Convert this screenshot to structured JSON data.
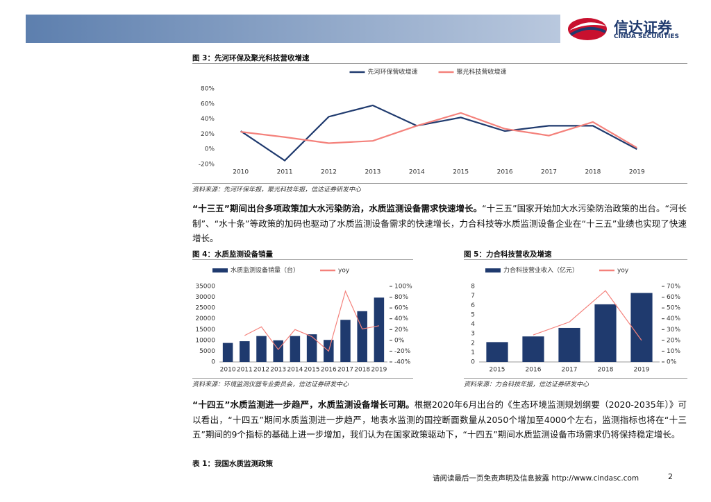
{
  "header": {
    "logo": "信达证券",
    "logo_en": "CINDA SECURITIES"
  },
  "chart_data": [
    {
      "type": "line",
      "title": "图 3：先河环保及聚光科技营收增速",
      "source": "资料来源：先河环保年报，聚光科技年报，信达证券研发中心",
      "categories": [
        "2010",
        "2011",
        "2012",
        "2013",
        "2014",
        "2015",
        "2016",
        "2017",
        "2018",
        "2019"
      ],
      "series": [
        {
          "name": "先河环保营收增速",
          "color": "#1f3a6e",
          "values": [
            24,
            -15,
            43,
            58,
            31,
            42,
            24,
            31,
            31,
            0
          ]
        },
        {
          "name": "聚光科技营收增速",
          "color": "#f4817b",
          "values": [
            23,
            16,
            8,
            11,
            31,
            48,
            27,
            18,
            36,
            2
          ]
        }
      ],
      "ylim": [
        -20,
        80
      ],
      "yticks": [
        {
          "value": 80,
          "label": "80%"
        },
        {
          "value": 60,
          "label": "60%"
        },
        {
          "value": 40,
          "label": "40%"
        },
        {
          "value": 20,
          "label": "20%"
        },
        {
          "value": 0,
          "label": "0%"
        },
        {
          "value": -20,
          "label": "-20%"
        }
      ]
    },
    {
      "type": "bar",
      "title": "图 4：水质监测设备销量",
      "source": "资料来源：环境监测仪器专业委员会，信达证券研发中心",
      "categories": [
        "2010",
        "2011",
        "2012",
        "2013",
        "2014",
        "2015",
        "2016",
        "2017",
        "2018",
        "2019"
      ],
      "series": [
        {
          "name": "水质监测设备销量（台）",
          "color": "#1f3a6e",
          "values": [
            8800,
            9600,
            12000,
            10000,
            12000,
            12800,
            10200,
            19500,
            23500,
            29800
          ]
        },
        {
          "name": "yoy",
          "color": "#f4817b",
          "type": "line",
          "axis": "y2",
          "values": [
            null,
            9,
            25,
            -17,
            20,
            7,
            -20,
            91,
            21,
            27
          ]
        }
      ],
      "ylim": [
        0,
        35000
      ],
      "yticks": [
        0,
        5000,
        10000,
        15000,
        20000,
        25000,
        30000,
        35000
      ],
      "y2lim": [
        -40,
        100
      ],
      "y2ticks": [
        {
          "value": -40,
          "label": "-40%"
        },
        {
          "value": -20,
          "label": "-20%"
        },
        {
          "value": 0,
          "label": "0%"
        },
        {
          "value": 20,
          "label": "20%"
        },
        {
          "value": 40,
          "label": "40%"
        },
        {
          "value": 60,
          "label": "60%"
        },
        {
          "value": 80,
          "label": "80%"
        },
        {
          "value": 100,
          "label": "100%"
        }
      ]
    },
    {
      "type": "bar",
      "title": "图 5：力合科技营收及增速",
      "source": "资料来源：力合科技年报，信达证券研发中心",
      "categories": [
        "2015",
        "2016",
        "2017",
        "2018",
        "2019"
      ],
      "series": [
        {
          "name": "力合科技营业收入（亿元）",
          "color": "#1f3a6e",
          "values": [
            2.1,
            2.7,
            3.6,
            6.1,
            7.3
          ]
        },
        {
          "name": "yoy",
          "color": "#f4817b",
          "type": "line",
          "axis": "y2",
          "values": [
            null,
            25,
            37,
            66,
            20
          ]
        }
      ],
      "ylim": [
        0,
        8
      ],
      "yticks": [
        0,
        1,
        2,
        3,
        4,
        5,
        6,
        7,
        8
      ],
      "y2lim": [
        0,
        70
      ],
      "y2ticks": [
        {
          "value": 0,
          "label": "0%"
        },
        {
          "value": 10,
          "label": "10%"
        },
        {
          "value": 20,
          "label": "20%"
        },
        {
          "value": 30,
          "label": "30%"
        },
        {
          "value": 40,
          "label": "40%"
        },
        {
          "value": 50,
          "label": "50%"
        },
        {
          "value": 60,
          "label": "60%"
        },
        {
          "value": 70,
          "label": "70%"
        }
      ]
    }
  ],
  "paragraphs": [
    {
      "lead": "“十三五”期间出台多项政策加大水污染防治，水质监测设备需求快速增长。",
      "text": "“十三五”国家开始加大水污染防治政策的出台。“河长制”、“水十条”等政策的加码也驱动了水质监测设备需求的快速增长，力合科技等水质监测设备企业在“十三五”业绩也实现了快速增长。"
    },
    {
      "lead": "“十四五”水质监测进一步趋严，水质监测设备增长可期。",
      "text": "根据2020年6月出台的《生态环境监测规划纲要（2020-2035年）》可以看出，“十四五”期间水质监测进一步趋严，地表水监测的国控断面数量从2050个增加至4000个左右，监测指标也将在“十三五”期间的9个指标的基础上进一步增加，我们认为在国家政策驱动下，“十四五”期间水质监测设备市场需求仍将保持稳定增长。"
    }
  ],
  "table": {
    "title": "表 1：我国水质监测政策"
  },
  "footer": {
    "disclaimer": "请阅读最后一页免责声明及信息披露",
    "url": "http://www.cindasc.com",
    "page": "2"
  }
}
